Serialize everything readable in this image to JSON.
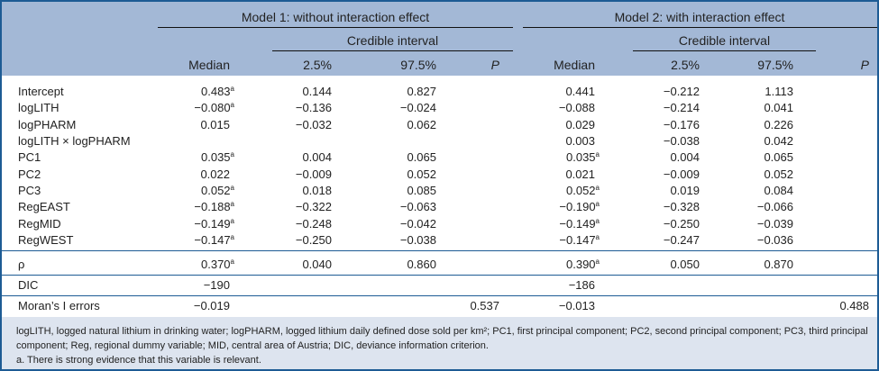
{
  "header": {
    "model1": "Model 1: without interaction effect",
    "model2": "Model 2: with interaction effect",
    "credible_interval": "Credible interval",
    "columns": [
      "Median",
      "2.5%",
      "97.5%",
      "P",
      "Median",
      "2.5%",
      "97.5%",
      "P"
    ]
  },
  "rows": [
    {
      "label": "Intercept",
      "cells": [
        [
          "0.483",
          "a"
        ],
        [
          "0.144",
          ""
        ],
        [
          "0.827",
          ""
        ],
        [
          "",
          ""
        ],
        [
          "0.441",
          ""
        ],
        [
          "−0.212",
          ""
        ],
        [
          "1.113",
          ""
        ],
        [
          "",
          ""
        ]
      ]
    },
    {
      "label": "logLITH",
      "cells": [
        [
          "−0.080",
          "a"
        ],
        [
          "−0.136",
          ""
        ],
        [
          "−0.024",
          ""
        ],
        [
          "",
          ""
        ],
        [
          "−0.088",
          ""
        ],
        [
          "−0.214",
          ""
        ],
        [
          "0.041",
          ""
        ],
        [
          "",
          ""
        ]
      ]
    },
    {
      "label": "logPHARM",
      "cells": [
        [
          "0.015",
          ""
        ],
        [
          "−0.032",
          ""
        ],
        [
          "0.062",
          ""
        ],
        [
          "",
          ""
        ],
        [
          "0.029",
          ""
        ],
        [
          "−0.176",
          ""
        ],
        [
          "0.226",
          ""
        ],
        [
          "",
          ""
        ]
      ]
    },
    {
      "label": "logLITH × logPHARM",
      "cells": [
        [
          "",
          ""
        ],
        [
          "",
          ""
        ],
        [
          "",
          ""
        ],
        [
          "",
          ""
        ],
        [
          "0.003",
          ""
        ],
        [
          "−0.038",
          ""
        ],
        [
          "0.042",
          ""
        ],
        [
          "",
          ""
        ]
      ]
    },
    {
      "label": "PC1",
      "cells": [
        [
          "0.035",
          "a"
        ],
        [
          "0.004",
          ""
        ],
        [
          "0.065",
          ""
        ],
        [
          "",
          ""
        ],
        [
          "0.035",
          "a"
        ],
        [
          "0.004",
          ""
        ],
        [
          "0.065",
          ""
        ],
        [
          "",
          ""
        ]
      ]
    },
    {
      "label": "PC2",
      "cells": [
        [
          "0.022",
          ""
        ],
        [
          "−0.009",
          ""
        ],
        [
          "0.052",
          ""
        ],
        [
          "",
          ""
        ],
        [
          "0.021",
          ""
        ],
        [
          "−0.009",
          ""
        ],
        [
          "0.052",
          ""
        ],
        [
          "",
          ""
        ]
      ]
    },
    {
      "label": "PC3",
      "cells": [
        [
          "0.052",
          "a"
        ],
        [
          "0.018",
          ""
        ],
        [
          "0.085",
          ""
        ],
        [
          "",
          ""
        ],
        [
          "0.052",
          "a"
        ],
        [
          "0.019",
          ""
        ],
        [
          "0.084",
          ""
        ],
        [
          "",
          ""
        ]
      ]
    },
    {
      "label": "RegEAST",
      "cells": [
        [
          "−0.188",
          "a"
        ],
        [
          "−0.322",
          ""
        ],
        [
          "−0.063",
          ""
        ],
        [
          "",
          ""
        ],
        [
          "−0.190",
          "a"
        ],
        [
          "−0.328",
          ""
        ],
        [
          "−0.066",
          ""
        ],
        [
          "",
          ""
        ]
      ]
    },
    {
      "label": "RegMID",
      "cells": [
        [
          "−0.149",
          "a"
        ],
        [
          "−0.248",
          ""
        ],
        [
          "−0.042",
          ""
        ],
        [
          "",
          ""
        ],
        [
          "−0.149",
          "a"
        ],
        [
          "−0.250",
          ""
        ],
        [
          "−0.039",
          ""
        ],
        [
          "",
          ""
        ]
      ]
    },
    {
      "label": "RegWEST",
      "cells": [
        [
          "−0.147",
          "a"
        ],
        [
          "−0.250",
          ""
        ],
        [
          "−0.038",
          ""
        ],
        [
          "",
          ""
        ],
        [
          "−0.147",
          "a"
        ],
        [
          "−0.247",
          ""
        ],
        [
          "−0.036",
          ""
        ],
        [
          "",
          ""
        ]
      ]
    },
    {
      "label": "ρ",
      "cells": [
        [
          "0.370",
          "a"
        ],
        [
          "0.040",
          ""
        ],
        [
          "0.860",
          ""
        ],
        [
          "",
          ""
        ],
        [
          "0.390",
          "a"
        ],
        [
          "0.050",
          ""
        ],
        [
          "0.870",
          ""
        ],
        [
          "",
          ""
        ]
      ]
    },
    {
      "label": "DIC",
      "cells": [
        [
          "−190",
          ""
        ],
        [
          "",
          ""
        ],
        [
          "",
          ""
        ],
        [
          "",
          ""
        ],
        [
          "−186",
          ""
        ],
        [
          "",
          ""
        ],
        [
          "",
          ""
        ],
        [
          "",
          ""
        ]
      ]
    },
    {
      "label": "Moran’s I errors",
      "cells": [
        [
          "−0.019",
          ""
        ],
        [
          "",
          ""
        ],
        [
          "",
          ""
        ],
        [
          "0.537",
          ""
        ],
        [
          "−0.013",
          ""
        ],
        [
          "",
          ""
        ],
        [
          "",
          ""
        ],
        [
          "0.488",
          ""
        ]
      ]
    }
  ],
  "footnote": {
    "line1": "logLITH, logged natural lithium in drinking water; logPHARM, logged lithium daily defined dose sold per km²; PC1, first principal component; PC2, second principal component; PC3, third principal component; Reg, regional dummy variable; MID, central area of Austria; DIC, deviance information criterion.",
    "line2": "a. There is strong evidence that this variable is relevant."
  },
  "colors": {
    "border": "#1d5b94",
    "header_bg": "#a3b8d6",
    "footer_bg": "#dde4ef"
  }
}
